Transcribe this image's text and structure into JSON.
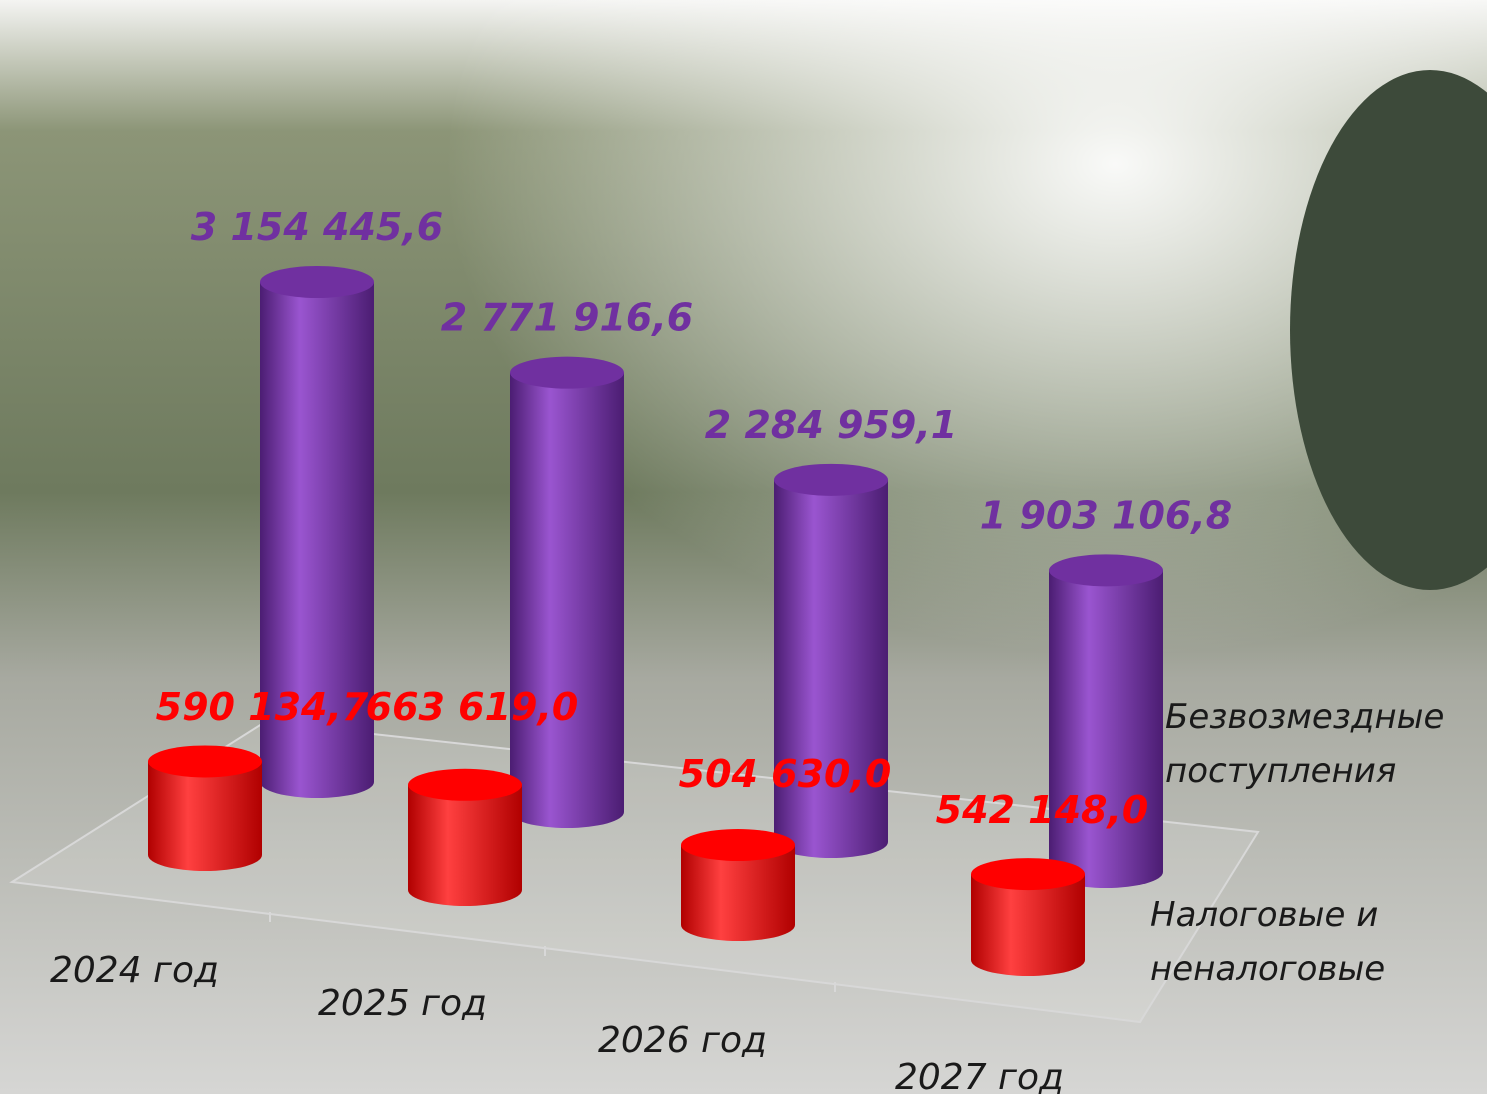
{
  "chart_data": {
    "type": "cylinder3d",
    "categories": [
      "2024 год",
      "2025 год",
      "2026 год",
      "2027 год"
    ],
    "series": [
      {
        "name": "Безвозмездные поступления",
        "color": "#7030a0",
        "values": [
          3154445.6,
          2771916.6,
          2284959.1,
          1903106.8
        ],
        "value_labels": [
          "3 154 445,6",
          "2 771 916,6",
          "2 284 959,1",
          "1 903 106,8"
        ]
      },
      {
        "name": "Налоговые и неналоговые",
        "color": "#ff0000",
        "values": [
          590134.7,
          663619.0,
          504630.0,
          542148.0
        ],
        "value_labels": [
          "590 134,7",
          "663 619,0",
          "504 630,0",
          "542 148,0"
        ]
      }
    ]
  }
}
